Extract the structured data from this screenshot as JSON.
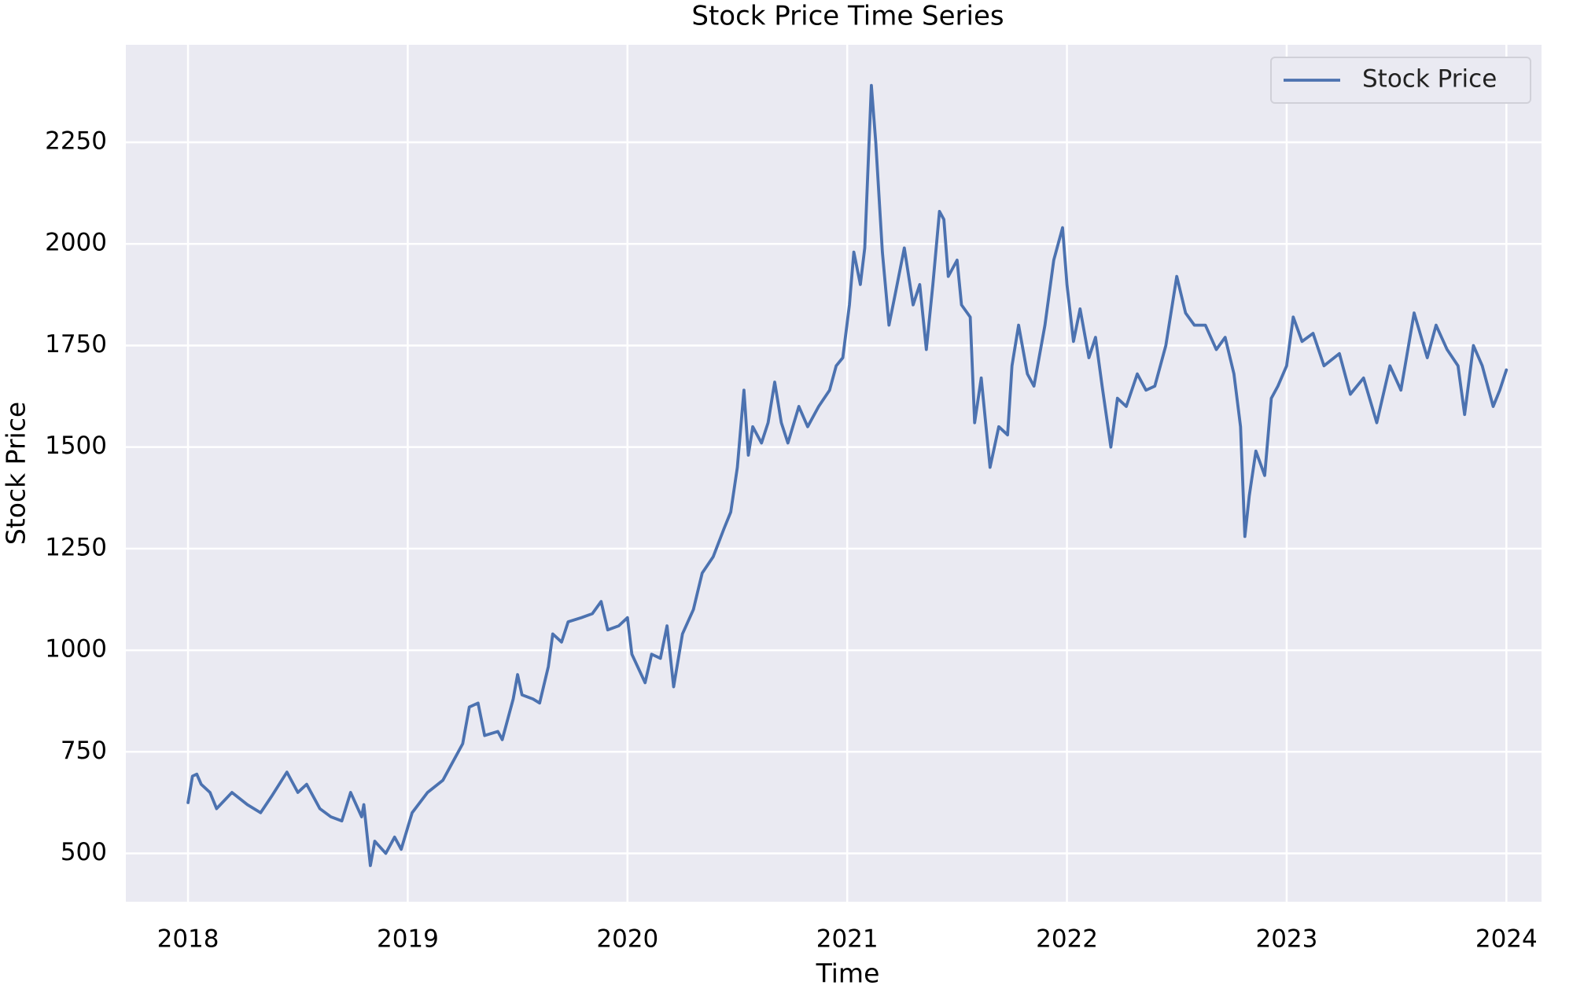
{
  "chart_data": {
    "type": "line",
    "title": "Stock Price Time Series",
    "x_label": "Time",
    "y_label": "Stock Price",
    "x": [
      2018.0,
      2018.02,
      2018.04,
      2018.06,
      2018.1,
      2018.13,
      2018.2,
      2018.27,
      2018.33,
      2018.38,
      2018.45,
      2018.5,
      2018.54,
      2018.6,
      2018.65,
      2018.7,
      2018.74,
      2018.79,
      2018.8,
      2018.83,
      2018.85,
      2018.9,
      2018.94,
      2018.97,
      2019.02,
      2019.09,
      2019.16,
      2019.2,
      2019.25,
      2019.28,
      2019.32,
      2019.35,
      2019.41,
      2019.43,
      2019.48,
      2019.5,
      2019.52,
      2019.57,
      2019.6,
      2019.64,
      2019.66,
      2019.7,
      2019.73,
      2019.79,
      2019.84,
      2019.88,
      2019.91,
      2019.96,
      2020.0,
      2020.02,
      2020.08,
      2020.11,
      2020.15,
      2020.18,
      2020.21,
      2020.25,
      2020.3,
      2020.34,
      2020.39,
      2020.44,
      2020.47,
      2020.5,
      2020.53,
      2020.55,
      2020.57,
      2020.61,
      2020.64,
      2020.67,
      2020.7,
      2020.73,
      2020.78,
      2020.82,
      2020.87,
      2020.92,
      2020.95,
      2020.98,
      2021.01,
      2021.03,
      2021.06,
      2021.08,
      2021.11,
      2021.13,
      2021.16,
      2021.19,
      2021.22,
      2021.26,
      2021.3,
      2021.33,
      2021.36,
      2021.39,
      2021.42,
      2021.44,
      2021.46,
      2021.5,
      2021.52,
      2021.56,
      2021.58,
      2021.61,
      2021.65,
      2021.69,
      2021.73,
      2021.75,
      2021.78,
      2021.82,
      2021.85,
      2021.9,
      2021.94,
      2021.98,
      2022.0,
      2022.03,
      2022.06,
      2022.1,
      2022.13,
      2022.16,
      2022.2,
      2022.23,
      2022.27,
      2022.32,
      2022.36,
      2022.4,
      2022.45,
      2022.5,
      2022.54,
      2022.58,
      2022.63,
      2022.68,
      2022.72,
      2022.76,
      2022.79,
      2022.81,
      2022.83,
      2022.86,
      2022.9,
      2022.93,
      2022.96,
      2023.0,
      2023.03,
      2023.07,
      2023.12,
      2023.17,
      2023.24,
      2023.29,
      2023.35,
      2023.41,
      2023.47,
      2023.52,
      2023.58,
      2023.64,
      2023.68,
      2023.73,
      2023.78,
      2023.81,
      2023.85,
      2023.89,
      2023.94,
      2023.97,
      2024.0
    ],
    "series": [
      {
        "name": "Stock Price",
        "color": "#4c72b0",
        "values": [
          625,
          690,
          695,
          670,
          650,
          610,
          650,
          620,
          600,
          640,
          700,
          650,
          670,
          610,
          590,
          580,
          650,
          590,
          620,
          470,
          530,
          500,
          540,
          510,
          600,
          650,
          680,
          720,
          770,
          860,
          870,
          790,
          800,
          780,
          880,
          940,
          890,
          880,
          870,
          960,
          1040,
          1020,
          1070,
          1080,
          1090,
          1120,
          1050,
          1060,
          1080,
          990,
          920,
          990,
          980,
          1060,
          910,
          1040,
          1100,
          1190,
          1230,
          1300,
          1340,
          1450,
          1640,
          1480,
          1550,
          1510,
          1560,
          1660,
          1560,
          1510,
          1600,
          1550,
          1600,
          1640,
          1700,
          1720,
          1850,
          1980,
          1900,
          1990,
          2390,
          2250,
          1980,
          1800,
          1880,
          1990,
          1850,
          1900,
          1740,
          1900,
          2080,
          2060,
          1920,
          1960,
          1850,
          1820,
          1560,
          1670,
          1450,
          1550,
          1530,
          1700,
          1800,
          1680,
          1650,
          1800,
          1960,
          2040,
          1900,
          1760,
          1840,
          1720,
          1770,
          1650,
          1500,
          1620,
          1600,
          1680,
          1640,
          1650,
          1750,
          1920,
          1830,
          1800,
          1800,
          1740,
          1770,
          1680,
          1550,
          1280,
          1380,
          1490,
          1430,
          1620,
          1650,
          1700,
          1820,
          1760,
          1780,
          1700,
          1730,
          1630,
          1670,
          1560,
          1700,
          1640,
          1830,
          1720,
          1800,
          1740,
          1700,
          1580,
          1750,
          1700,
          1600,
          1640,
          1690
        ]
      }
    ],
    "xlim": [
      2017.717,
      2024.16
    ],
    "ylim": [
      381,
      2490
    ],
    "xticks": [
      2018,
      2019,
      2020,
      2021,
      2022,
      2023,
      2024
    ],
    "yticks": [
      500,
      750,
      1000,
      1250,
      1500,
      1750,
      2000,
      2250
    ],
    "grid": true,
    "legend": "upper right"
  }
}
